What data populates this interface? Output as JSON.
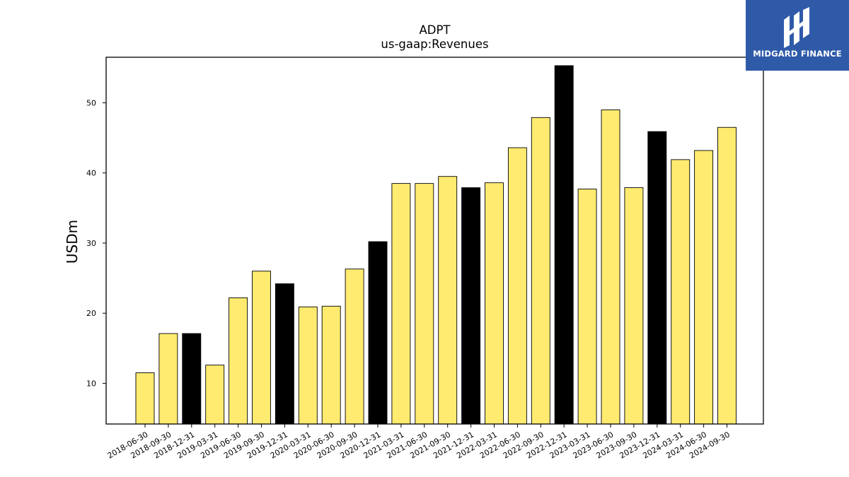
{
  "chart_data": {
    "type": "bar",
    "title": "ADPT",
    "subtitle": "us-gaap:Revenues",
    "xlabel": "",
    "ylabel": "USDm",
    "ylim": [
      4.2,
      56.5
    ],
    "yticks": [
      10,
      20,
      30,
      40,
      50
    ],
    "grid": false,
    "colors": {
      "quarter": "#ffeb70",
      "year_end": "#000000",
      "edge": "#000000"
    },
    "categories": [
      "2018-06-30",
      "2018-09-30",
      "2018-12-31",
      "2019-03-31",
      "2019-06-30",
      "2019-09-30",
      "2019-12-31",
      "2020-03-31",
      "2020-06-30",
      "2020-09-30",
      "2020-12-31",
      "2021-03-31",
      "2021-06-30",
      "2021-09-30",
      "2021-12-31",
      "2022-03-31",
      "2022-06-30",
      "2022-09-30",
      "2022-12-31",
      "2023-03-31",
      "2023-06-30",
      "2023-09-30",
      "2023-12-31",
      "2024-03-31",
      "2024-06-30",
      "2024-09-30"
    ],
    "values": [
      11.5,
      17.1,
      17.1,
      12.6,
      22.2,
      26.0,
      24.2,
      20.9,
      21.0,
      26.3,
      30.2,
      38.5,
      38.5,
      39.5,
      37.9,
      38.6,
      43.6,
      47.9,
      55.3,
      37.7,
      49.0,
      37.9,
      45.9,
      41.9,
      43.2,
      46.5
    ],
    "highlight": [
      false,
      false,
      true,
      false,
      false,
      false,
      true,
      false,
      false,
      false,
      true,
      false,
      false,
      false,
      true,
      false,
      false,
      false,
      true,
      false,
      false,
      false,
      true,
      false,
      false,
      false
    ]
  },
  "logo": {
    "text": "MIDGARD FINANCE",
    "background": "#2f5aa8"
  }
}
